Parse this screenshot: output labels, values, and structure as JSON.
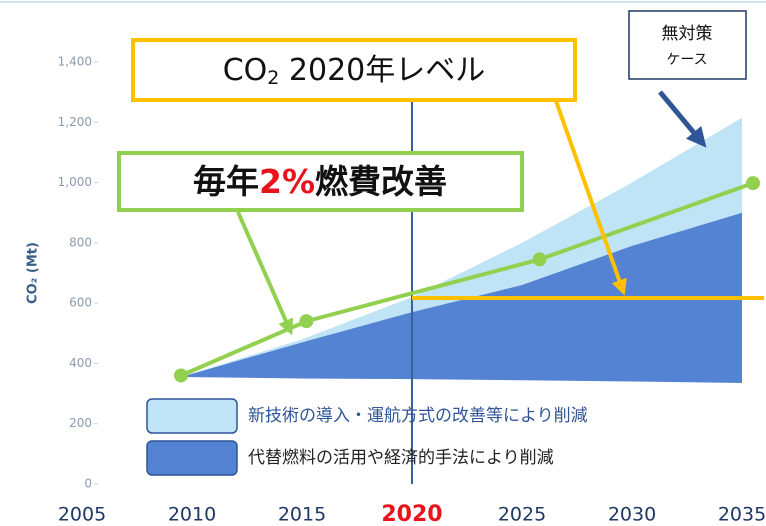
{
  "chart_data": {
    "type": "area",
    "y_label": "CO₂ (Mt)",
    "xlim": [
      2005,
      2036
    ],
    "ylim": [
      0,
      1400
    ],
    "xticks": [
      2005,
      2010,
      2015,
      2020,
      2025,
      2030,
      2035
    ],
    "xtick_highlight": 2020,
    "xtick_highlight_color": "#e8141b",
    "yticks": [
      0,
      200,
      400,
      600,
      800,
      {
        "value": 1000,
        "label": "1,000"
      },
      {
        "value": 1200,
        "label": "1,200"
      },
      {
        "value": 1400,
        "label": "1,400"
      }
    ],
    "x": [
      2009.5,
      2015,
      2020,
      2025,
      2030,
      2035
    ],
    "series": [
      {
        "name": "新技術の導入・運航方式の改善等により削減",
        "color": "#bfe4f6",
        "values": [
          355,
          480,
          620,
          800,
          1000,
          1215
        ],
        "base": [
          355,
          470,
          570,
          660,
          790,
          900
        ]
      },
      {
        "name": "代替燃料の活用や経済的手法により削減",
        "color": "#5583d4",
        "values": [
          355,
          470,
          570,
          660,
          790,
          900
        ],
        "base": [
          355,
          350,
          348,
          344,
          340,
          335
        ]
      }
    ],
    "improvement_line": {
      "color": "#92d050",
      "x": [
        2009.5,
        2015.2,
        2025.8,
        2035.5
      ],
      "values": [
        360,
        540,
        745,
        998
      ]
    },
    "level_line": {
      "color": "#ffc000",
      "x": [
        2020,
        2036
      ],
      "values": [
        617,
        617
      ]
    },
    "reference_year": 2020,
    "annotations": {
      "level": [
        "CO",
        "2",
        " 2020年レベル"
      ],
      "improvement": [
        "毎年",
        "2%",
        "燃費改善"
      ],
      "no_action": [
        "無対策",
        "ケース"
      ]
    }
  }
}
